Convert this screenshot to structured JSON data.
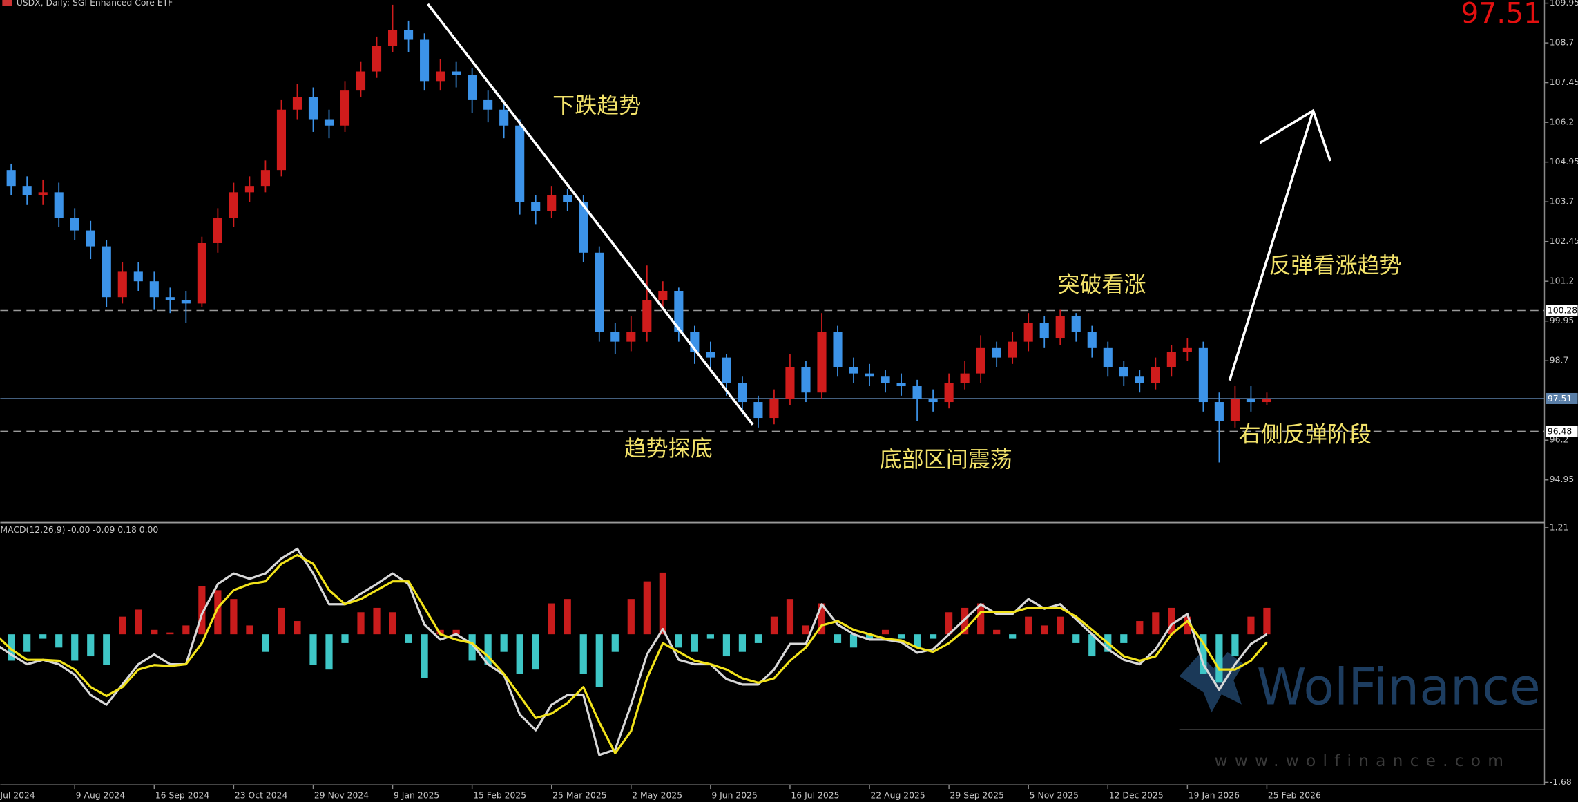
{
  "watermark": {
    "brand": "WolFinance",
    "url": "www.wolfinance.com"
  },
  "chart_data": [
    {
      "type": "candlestick",
      "title": "USDX, Daily:  SGI Enhanced Core ETF",
      "categories": [
        "Jul 2024",
        null,
        null,
        null,
        null,
        "9 Aug 2024",
        null,
        null,
        null,
        null,
        "16 Sep 2024",
        null,
        null,
        null,
        null,
        "23 Oct 2024",
        null,
        null,
        null,
        null,
        "29 Nov 2024",
        null,
        null,
        null,
        null,
        "9 Jan 2025",
        null,
        null,
        null,
        null,
        "15 Feb 2025",
        null,
        null,
        null,
        null,
        "25 Mar 2025",
        null,
        null,
        null,
        null,
        "2 May 2025",
        null,
        null,
        null,
        null,
        "9 Jun 2025",
        null,
        null,
        null,
        null,
        "16 Jul 2025",
        null,
        null,
        null,
        null,
        "22 Aug 2025",
        null,
        null,
        null,
        null,
        "29 Sep 2025",
        null,
        null,
        null,
        null,
        "5 Nov 2025",
        null,
        null,
        null,
        null,
        "12 Dec 2025",
        null,
        null,
        null,
        null,
        "19 Jan 2026",
        null,
        null,
        null,
        null,
        "25 Feb 2026"
      ],
      "open": [
        104.9,
        104.7,
        104.2,
        103.9,
        104.0,
        103.2,
        102.8,
        102.3,
        100.7,
        101.5,
        101.2,
        100.7,
        100.6,
        100.5,
        102.4,
        103.2,
        104.0,
        104.2,
        104.7,
        106.6,
        107.0,
        106.3,
        106.1,
        107.2,
        107.8,
        108.6,
        109.1,
        108.8,
        107.5,
        107.8,
        107.7,
        106.9,
        106.6,
        106.1,
        103.7,
        103.4,
        103.9,
        103.7,
        102.1,
        99.6,
        99.3,
        99.6,
        100.6,
        100.9,
        99.6,
        98.97,
        98.8,
        98.0,
        97.4,
        96.9,
        97.5,
        98.5,
        97.7,
        99.6,
        98.5,
        98.3,
        98.2,
        98.0,
        97.9,
        97.5,
        97.4,
        98.0,
        98.3,
        99.1,
        98.8,
        99.3,
        99.9,
        99.4,
        100.1,
        99.6,
        99.1,
        98.5,
        98.2,
        98.0,
        98.5,
        98.97,
        99.1,
        97.4,
        96.8,
        97.5,
        97.4
      ],
      "high": [
        105.1,
        104.9,
        104.5,
        104.4,
        104.3,
        103.5,
        103.1,
        102.5,
        101.8,
        101.8,
        101.5,
        101.0,
        100.9,
        102.6,
        103.5,
        104.3,
        104.5,
        105.0,
        106.9,
        107.4,
        107.3,
        106.6,
        107.5,
        108.1,
        108.9,
        109.9,
        109.4,
        109.0,
        108.2,
        108.1,
        107.9,
        107.2,
        106.9,
        106.3,
        103.9,
        104.2,
        104.1,
        103.9,
        102.3,
        99.9,
        100.1,
        101.7,
        101.2,
        101.0,
        99.8,
        99.3,
        98.9,
        98.2,
        97.6,
        97.8,
        98.9,
        98.7,
        100.2,
        99.8,
        98.8,
        98.6,
        98.4,
        98.3,
        98.1,
        97.8,
        98.3,
        98.7,
        99.5,
        99.3,
        99.6,
        100.2,
        100.1,
        100.3,
        100.2,
        99.8,
        99.3,
        98.7,
        98.4,
        98.8,
        99.2,
        99.4,
        99.3,
        97.7,
        97.9,
        97.9,
        97.7
      ],
      "low": [
        104.3,
        103.9,
        103.6,
        103.6,
        102.9,
        102.5,
        101.9,
        100.4,
        100.5,
        100.9,
        100.3,
        100.2,
        99.9,
        100.4,
        102.1,
        102.9,
        103.7,
        104.0,
        104.5,
        106.3,
        105.9,
        105.7,
        105.9,
        107.0,
        107.6,
        108.4,
        108.4,
        107.2,
        107.2,
        107.3,
        106.5,
        106.2,
        105.7,
        103.3,
        103.0,
        103.2,
        103.4,
        101.8,
        99.3,
        98.9,
        99.0,
        99.3,
        100.3,
        99.3,
        98.6,
        98.4,
        97.6,
        97.0,
        96.6,
        96.7,
        97.3,
        97.4,
        97.5,
        98.2,
        98.0,
        97.9,
        97.7,
        97.6,
        96.8,
        97.1,
        97.2,
        97.8,
        98.0,
        98.5,
        98.6,
        99.0,
        99.1,
        99.2,
        99.3,
        98.8,
        98.2,
        97.9,
        97.7,
        97.8,
        98.2,
        98.7,
        97.1,
        95.5,
        96.6,
        97.1,
        97.3
      ],
      "close": [
        104.7,
        104.2,
        103.9,
        104.0,
        103.2,
        102.8,
        102.3,
        100.7,
        101.5,
        101.2,
        100.7,
        100.6,
        100.5,
        102.4,
        103.2,
        104.0,
        104.2,
        104.7,
        106.6,
        107.0,
        106.3,
        106.1,
        107.2,
        107.8,
        108.6,
        109.1,
        108.8,
        107.5,
        107.8,
        107.7,
        106.9,
        106.6,
        106.1,
        103.7,
        103.4,
        103.9,
        103.7,
        102.1,
        99.6,
        99.3,
        99.6,
        100.6,
        100.9,
        99.6,
        98.97,
        98.8,
        98.0,
        97.4,
        96.9,
        97.5,
        98.5,
        97.7,
        99.6,
        98.5,
        98.3,
        98.2,
        98.0,
        97.9,
        97.5,
        97.4,
        98.0,
        98.3,
        99.1,
        98.8,
        99.3,
        99.9,
        99.4,
        100.1,
        99.6,
        99.1,
        98.5,
        98.2,
        98.0,
        98.5,
        98.97,
        99.1,
        97.4,
        96.8,
        97.5,
        97.4,
        97.51
      ],
      "up_color": "#d01c1c",
      "down_color": "#3c93e8",
      "ylim": [
        93.65,
        110.05
      ],
      "yticks": [
        109.95,
        108.7,
        107.45,
        106.2,
        104.95,
        103.7,
        102.45,
        101.2,
        99.95,
        98.7,
        96.2,
        94.95
      ],
      "hlines": [
        {
          "value": 100.28,
          "color": "#9a9a9a",
          "style": "dashed",
          "label_bg": "#ffffff",
          "label_color": "#000000"
        },
        {
          "value": 97.51,
          "color": "#5a7fa8",
          "style": "solid",
          "label_bg": "#5a7fa8",
          "label_color": "#ffffff"
        },
        {
          "value": 96.48,
          "color": "#9a9a9a",
          "style": "dashed",
          "label_bg": "#ffffff",
          "label_color": "#000000"
        }
      ],
      "annotations": [
        "下跌趋势",
        "突破看涨",
        "反弹看涨趋势",
        "趋势探底",
        "底部区间震荡",
        "右侧反弹阶段"
      ]
    },
    {
      "type": "macd",
      "title": "MACD(12,26,9) -0.00 -0.09 0.18 0.00",
      "histogram": {
        "up_color": "#c81c1c",
        "down_color": "#3ec6c6",
        "values": [
          -0.3,
          -0.3,
          -0.2,
          -0.05,
          -0.15,
          -0.3,
          -0.25,
          -0.35,
          0.2,
          0.28,
          0.05,
          0.02,
          0.1,
          0.55,
          0.5,
          0.4,
          0.1,
          -0.2,
          0.3,
          0.15,
          -0.35,
          -0.4,
          -0.1,
          0.25,
          0.3,
          0.25,
          -0.1,
          -0.5,
          0.05,
          0.05,
          -0.3,
          -0.35,
          -0.2,
          -0.45,
          -0.4,
          0.35,
          0.4,
          -0.45,
          -0.6,
          -0.2,
          0.4,
          0.6,
          0.7,
          -0.15,
          -0.2,
          -0.05,
          -0.25,
          -0.2,
          -0.1,
          0.2,
          0.4,
          0.1,
          0.35,
          -0.1,
          -0.15,
          -0.05,
          0.05,
          -0.05,
          -0.15,
          -0.05,
          0.25,
          0.3,
          0.35,
          0.05,
          -0.05,
          0.2,
          0.1,
          0.2,
          -0.1,
          -0.25,
          -0.2,
          -0.1,
          0.15,
          0.25,
          0.3,
          0.2,
          -0.45,
          -0.55,
          -0.25,
          0.2,
          0.3
        ]
      },
      "series": [
        {
          "color": "#d8d8d8",
          "values": [
            -0.11,
            -0.23,
            -0.34,
            -0.29,
            -0.34,
            -0.46,
            -0.69,
            -0.8,
            -0.57,
            -0.34,
            -0.23,
            -0.34,
            -0.34,
            0.23,
            0.57,
            0.69,
            0.63,
            0.69,
            0.86,
            0.97,
            0.69,
            0.34,
            0.34,
            0.46,
            0.57,
            0.69,
            0.57,
            0.11,
            -0.06,
            0,
            -0.11,
            -0.34,
            -0.46,
            -0.91,
            -1.09,
            -0.8,
            -0.69,
            -0.69,
            -1.37,
            -1.31,
            -0.8,
            -0.23,
            0.06,
            -0.29,
            -0.34,
            -0.34,
            -0.51,
            -0.57,
            -0.57,
            -0.4,
            -0.11,
            -0.11,
            0.34,
            0.11,
            0,
            -0.06,
            -0.06,
            -0.09,
            -0.21,
            -0.17,
            0,
            0.17,
            0.34,
            0.23,
            0.23,
            0.4,
            0.29,
            0.34,
            0.17,
            0,
            -0.17,
            -0.29,
            -0.34,
            -0.17,
            0.11,
            0.23,
            -0.34,
            -0.63,
            -0.34,
            -0.11,
            0
          ]
        },
        {
          "color": "#f2e31a",
          "values": [
            0,
            -0.17,
            -0.29,
            -0.29,
            -0.3,
            -0.4,
            -0.6,
            -0.7,
            -0.6,
            -0.4,
            -0.35,
            -0.36,
            -0.34,
            -0.1,
            0.3,
            0.5,
            0.57,
            0.6,
            0.8,
            0.9,
            0.8,
            0.5,
            0.34,
            0.4,
            0.5,
            0.6,
            0.6,
            0.3,
            0,
            -0.06,
            -0.1,
            -0.25,
            -0.45,
            -0.7,
            -0.95,
            -0.9,
            -0.78,
            -0.6,
            -1.0,
            -1.35,
            -1.1,
            -0.5,
            -0.1,
            -0.2,
            -0.3,
            -0.34,
            -0.4,
            -0.5,
            -0.55,
            -0.5,
            -0.3,
            -0.15,
            0.1,
            0.15,
            0.05,
            0,
            -0.05,
            -0.07,
            -0.15,
            -0.2,
            -0.1,
            0.05,
            0.25,
            0.25,
            0.25,
            0.3,
            0.3,
            0.3,
            0.2,
            0.05,
            -0.1,
            -0.25,
            -0.3,
            -0.25,
            0,
            0.15,
            -0.1,
            -0.4,
            -0.4,
            -0.3,
            -0.09
          ]
        }
      ],
      "ylim": [
        -1.71,
        1.26
      ],
      "yticks": [
        1.21,
        -1.68
      ]
    }
  ]
}
